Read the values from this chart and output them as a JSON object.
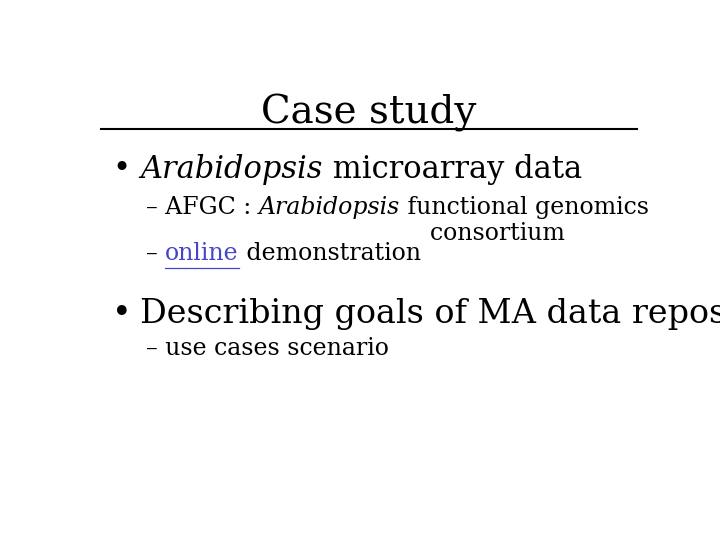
{
  "title": "Case study",
  "title_fontsize": 28,
  "title_color": "#000000",
  "background_color": "#ffffff",
  "line_color": "#000000",
  "bullet1_italic": "Arabidopsis",
  "bullet1_regular": " microarray data",
  "bullet1_fontsize": 22,
  "sub1a_prefix": "– AFGC : ",
  "sub1a_italic": "Arabidopsis",
  "sub1a_suffix": " functional genomics\n    consortium",
  "sub1a_fontsize": 17,
  "sub1b_prefix": "– ",
  "sub1b_link": "online",
  "sub1b_suffix": " demonstration",
  "sub1b_fontsize": 17,
  "sub1b_link_color": "#4444cc",
  "bullet2_text": "Describing goals of MA data repository :",
  "bullet2_fontsize": 24,
  "sub2a_text": "– use cases scenario",
  "sub2a_fontsize": 17,
  "text_color": "#000000",
  "bullet_color": "#000000"
}
